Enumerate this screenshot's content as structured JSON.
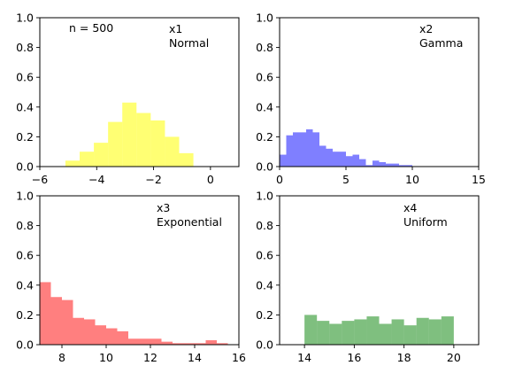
{
  "chart_data": [
    {
      "type": "bar",
      "histogram": true,
      "color": "#ffff00",
      "opacity": 0.55,
      "xlim": [
        -6,
        1
      ],
      "ylim": [
        0,
        1.0
      ],
      "xticks": [
        -6,
        -4,
        -2,
        0
      ],
      "xtick_labels": [
        "−6",
        "−4",
        "−2",
        "0"
      ],
      "yticks": [
        0,
        0.2,
        0.4,
        0.6,
        0.8,
        1.0
      ],
      "ytick_labels": [
        "0.0",
        "0.2",
        "0.4",
        "0.6",
        "0.8",
        "1.0"
      ],
      "bins": [
        {
          "x0": -5.1,
          "x1": -4.6,
          "value": 0.04
        },
        {
          "x0": -4.6,
          "x1": -4.1,
          "value": 0.1
        },
        {
          "x0": -4.1,
          "x1": -3.6,
          "value": 0.16
        },
        {
          "x0": -3.6,
          "x1": -3.1,
          "value": 0.3
        },
        {
          "x0": -3.1,
          "x1": -2.6,
          "value": 0.43
        },
        {
          "x0": -2.6,
          "x1": -2.1,
          "value": 0.36
        },
        {
          "x0": -2.1,
          "x1": -1.6,
          "value": 0.31
        },
        {
          "x0": -1.6,
          "x1": -1.1,
          "value": 0.2
        },
        {
          "x0": -1.1,
          "x1": -0.6,
          "value": 0.09
        }
      ],
      "annotations": [
        {
          "text": "n = 500",
          "pos": "top-left"
        },
        {
          "text": "x1",
          "pos": "top-right"
        },
        {
          "text": "Normal",
          "pos": "top-right"
        }
      ]
    },
    {
      "type": "bar",
      "histogram": true,
      "color": "#0000ff",
      "opacity": 0.5,
      "xlim": [
        0,
        15
      ],
      "ylim": [
        0,
        1.0
      ],
      "xticks": [
        0,
        5,
        10,
        15
      ],
      "xtick_labels": [
        "0",
        "5",
        "10",
        "15"
      ],
      "yticks": [
        0,
        0.2,
        0.4,
        0.6,
        0.8,
        1.0
      ],
      "ytick_labels": [
        "0.0",
        "0.2",
        "0.4",
        "0.6",
        "0.8",
        "1.0"
      ],
      "bins": [
        {
          "x0": 0.0,
          "x1": 0.5,
          "value": 0.08
        },
        {
          "x0": 0.5,
          "x1": 1.0,
          "value": 0.21
        },
        {
          "x0": 1.0,
          "x1": 1.5,
          "value": 0.23
        },
        {
          "x0": 1.5,
          "x1": 2.0,
          "value": 0.23
        },
        {
          "x0": 2.0,
          "x1": 2.5,
          "value": 0.25
        },
        {
          "x0": 2.5,
          "x1": 3.0,
          "value": 0.23
        },
        {
          "x0": 3.0,
          "x1": 3.5,
          "value": 0.14
        },
        {
          "x0": 3.5,
          "x1": 4.0,
          "value": 0.12
        },
        {
          "x0": 4.0,
          "x1": 4.5,
          "value": 0.1
        },
        {
          "x0": 4.5,
          "x1": 5.0,
          "value": 0.1
        },
        {
          "x0": 5.0,
          "x1": 5.5,
          "value": 0.07
        },
        {
          "x0": 5.5,
          "x1": 6.0,
          "value": 0.08
        },
        {
          "x0": 6.0,
          "x1": 6.5,
          "value": 0.05
        },
        {
          "x0": 6.5,
          "x1": 7.0,
          "value": 0.01
        },
        {
          "x0": 7.0,
          "x1": 7.5,
          "value": 0.04
        },
        {
          "x0": 7.5,
          "x1": 8.0,
          "value": 0.03
        },
        {
          "x0": 8.0,
          "x1": 8.5,
          "value": 0.02
        },
        {
          "x0": 8.5,
          "x1": 9.0,
          "value": 0.02
        },
        {
          "x0": 9.0,
          "x1": 9.5,
          "value": 0.01
        },
        {
          "x0": 9.5,
          "x1": 10.0,
          "value": 0.01
        }
      ],
      "annotations": [
        {
          "text": "x2",
          "pos": "top-right"
        },
        {
          "text": "Gamma",
          "pos": "top-right"
        }
      ]
    },
    {
      "type": "bar",
      "histogram": true,
      "color": "#ff0000",
      "opacity": 0.5,
      "xlim": [
        7,
        16
      ],
      "ylim": [
        0,
        1.0
      ],
      "xticks": [
        8,
        10,
        12,
        14,
        16
      ],
      "xtick_labels": [
        "8",
        "10",
        "12",
        "14",
        "16"
      ],
      "yticks": [
        0,
        0.2,
        0.4,
        0.6,
        0.8,
        1.0
      ],
      "ytick_labels": [
        "0.0",
        "0.2",
        "0.4",
        "0.6",
        "0.8",
        "1.0"
      ],
      "bins": [
        {
          "x0": 7.0,
          "x1": 7.5,
          "value": 0.42
        },
        {
          "x0": 7.5,
          "x1": 8.0,
          "value": 0.32
        },
        {
          "x0": 8.0,
          "x1": 8.5,
          "value": 0.3
        },
        {
          "x0": 8.5,
          "x1": 9.0,
          "value": 0.18
        },
        {
          "x0": 9.0,
          "x1": 9.5,
          "value": 0.17
        },
        {
          "x0": 9.5,
          "x1": 10.0,
          "value": 0.13
        },
        {
          "x0": 10.0,
          "x1": 10.5,
          "value": 0.11
        },
        {
          "x0": 10.5,
          "x1": 11.0,
          "value": 0.09
        },
        {
          "x0": 11.0,
          "x1": 11.5,
          "value": 0.04
        },
        {
          "x0": 11.5,
          "x1": 12.0,
          "value": 0.04
        },
        {
          "x0": 12.0,
          "x1": 12.5,
          "value": 0.04
        },
        {
          "x0": 12.5,
          "x1": 13.0,
          "value": 0.02
        },
        {
          "x0": 13.0,
          "x1": 13.5,
          "value": 0.01
        },
        {
          "x0": 13.5,
          "x1": 14.0,
          "value": 0.01
        },
        {
          "x0": 14.0,
          "x1": 14.5,
          "value": 0.01
        },
        {
          "x0": 14.5,
          "x1": 15.0,
          "value": 0.03
        },
        {
          "x0": 15.0,
          "x1": 15.5,
          "value": 0.01
        }
      ],
      "annotations": [
        {
          "text": "x3",
          "pos": "top-right"
        },
        {
          "text": "Exponential",
          "pos": "top-right"
        }
      ]
    },
    {
      "type": "bar",
      "histogram": true,
      "color": "#008000",
      "opacity": 0.5,
      "xlim": [
        13,
        21
      ],
      "ylim": [
        0,
        1.0
      ],
      "xticks": [
        14,
        16,
        18,
        20
      ],
      "xtick_labels": [
        "14",
        "16",
        "18",
        "20"
      ],
      "yticks": [
        0,
        0.2,
        0.4,
        0.6,
        0.8,
        1.0
      ],
      "ytick_labels": [
        "0.0",
        "0.2",
        "0.4",
        "0.6",
        "0.8",
        "1.0"
      ],
      "bins": [
        {
          "x0": 14.0,
          "x1": 14.5,
          "value": 0.2
        },
        {
          "x0": 14.5,
          "x1": 15.0,
          "value": 0.16
        },
        {
          "x0": 15.0,
          "x1": 15.5,
          "value": 0.14
        },
        {
          "x0": 15.5,
          "x1": 16.0,
          "value": 0.16
        },
        {
          "x0": 16.0,
          "x1": 16.5,
          "value": 0.17
        },
        {
          "x0": 16.5,
          "x1": 17.0,
          "value": 0.19
        },
        {
          "x0": 17.0,
          "x1": 17.5,
          "value": 0.14
        },
        {
          "x0": 17.5,
          "x1": 18.0,
          "value": 0.17
        },
        {
          "x0": 18.0,
          "x1": 18.5,
          "value": 0.13
        },
        {
          "x0": 18.5,
          "x1": 19.0,
          "value": 0.18
        },
        {
          "x0": 19.0,
          "x1": 19.5,
          "value": 0.17
        },
        {
          "x0": 19.5,
          "x1": 20.0,
          "value": 0.19
        }
      ],
      "annotations": [
        {
          "text": "x4",
          "pos": "top-right"
        },
        {
          "text": "Uniform",
          "pos": "top-right"
        }
      ]
    }
  ]
}
